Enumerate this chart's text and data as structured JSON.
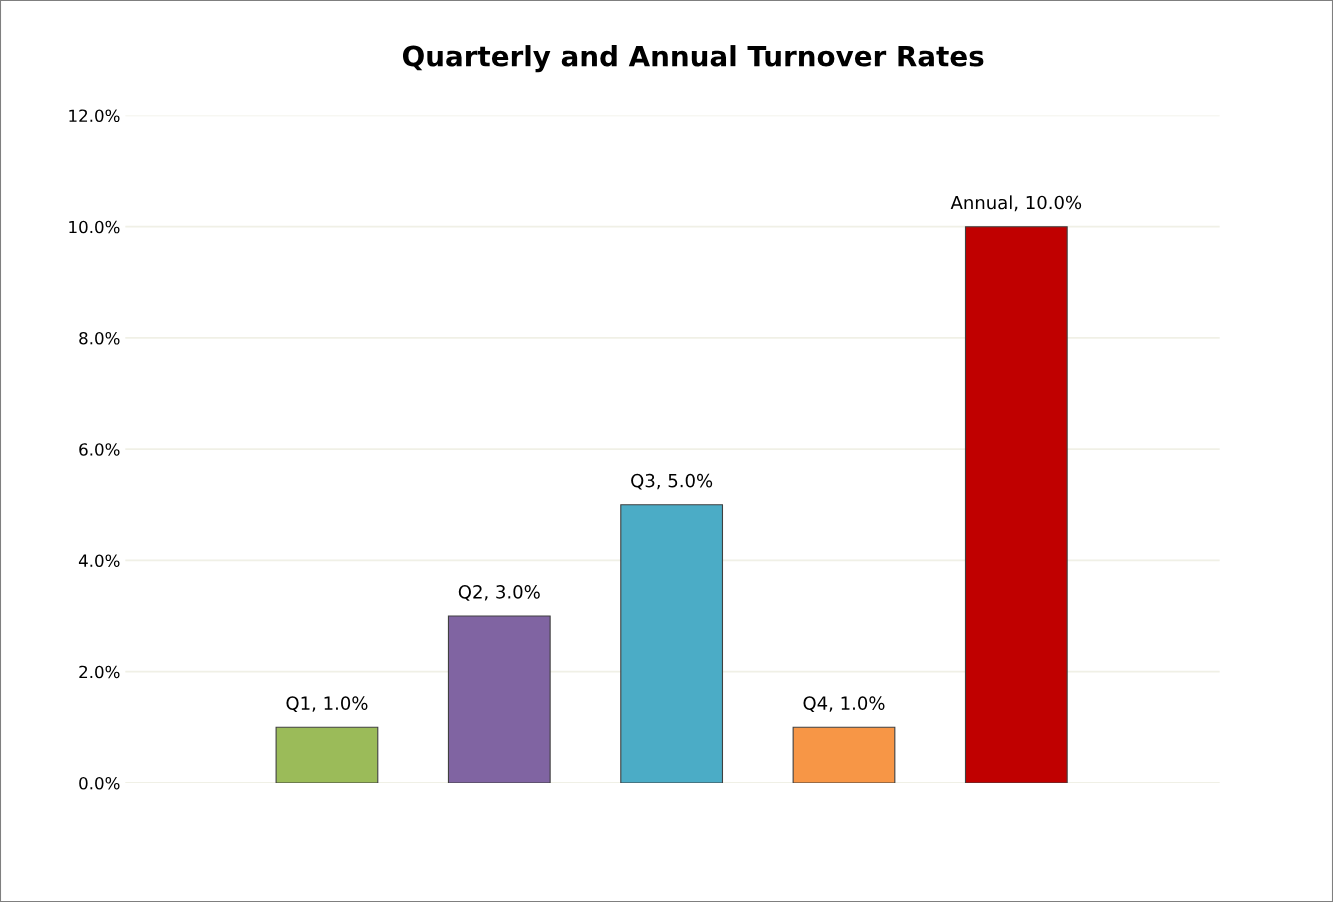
{
  "chart_data": {
    "type": "bar",
    "title": "Quarterly and Annual Turnover Rates",
    "categories": [
      null,
      null,
      null,
      null,
      null
    ],
    "values": [
      1.0,
      3.0,
      5.0,
      1.0,
      10.0
    ],
    "colors": [
      "#9bbb59",
      "#8064a2",
      "#4bacc6",
      "#f79646",
      "#c00000"
    ],
    "value_labels": [
      "Q1, 1.0%",
      "Q2, 3.0%",
      "Q3, 5.0%",
      "Q4, 1.0%",
      "Annual, 10.0%"
    ],
    "ylim": [
      0,
      12
    ],
    "yticks": [
      {
        "value": 0,
        "label": "0.0%"
      },
      {
        "value": 2,
        "label": "2.0%"
      },
      {
        "value": 4,
        "label": "4.0%"
      },
      {
        "value": 6,
        "label": "6.0%"
      },
      {
        "value": 8,
        "label": "8.0%"
      },
      {
        "value": 10,
        "label": "10.0%"
      },
      {
        "value": 12,
        "label": "12.0%"
      }
    ],
    "grid": "y",
    "tick_labels": "y"
  }
}
